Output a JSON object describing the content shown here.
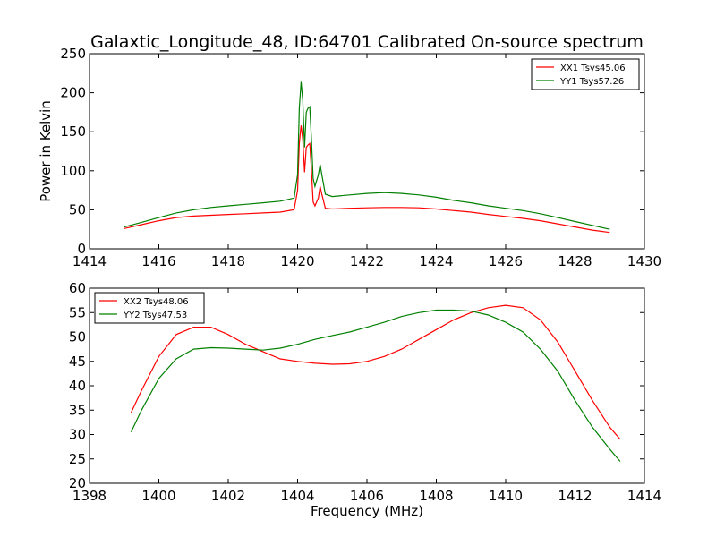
{
  "chart_data": [
    {
      "type": "line",
      "title": "Galaxtic_Longitude_48, ID:64701 Calibrated On-source spectrum",
      "xlabel": "",
      "ylabel": "Power in Kelvin",
      "xlim": [
        1414,
        1430
      ],
      "ylim": [
        0,
        250
      ],
      "xticks": [
        1414,
        1416,
        1418,
        1420,
        1422,
        1424,
        1426,
        1428,
        1430
      ],
      "yticks": [
        0,
        50,
        100,
        150,
        200,
        250
      ],
      "grid": false,
      "legend_position": "top-right",
      "series": [
        {
          "name": "XX1 Tsys45.06",
          "color": "#ff0000",
          "x": [
            1415.0,
            1415.5,
            1416.0,
            1416.5,
            1417.0,
            1417.5,
            1418.0,
            1418.5,
            1419.0,
            1419.5,
            1419.9,
            1420.0,
            1420.05,
            1420.1,
            1420.15,
            1420.2,
            1420.25,
            1420.3,
            1420.35,
            1420.4,
            1420.45,
            1420.5,
            1420.6,
            1420.65,
            1420.7,
            1420.8,
            1421.0,
            1421.5,
            1422.0,
            1422.5,
            1423.0,
            1423.5,
            1424.0,
            1424.5,
            1425.0,
            1425.5,
            1426.0,
            1426.5,
            1427.0,
            1427.5,
            1428.0,
            1428.5,
            1429.0
          ],
          "y": [
            26,
            31,
            36,
            40,
            42,
            43,
            44,
            45,
            46,
            47,
            50,
            75,
            135,
            158,
            140,
            98,
            130,
            133,
            135,
            100,
            60,
            55,
            65,
            80,
            70,
            52,
            51,
            52,
            52.5,
            53,
            53,
            52.5,
            51,
            49,
            47,
            44,
            41.5,
            39,
            36,
            32,
            28,
            24,
            21
          ]
        },
        {
          "name": "YY1 Tsys57.26",
          "color": "#008000",
          "x": [
            1415.0,
            1415.5,
            1416.0,
            1416.5,
            1417.0,
            1417.5,
            1418.0,
            1418.5,
            1419.0,
            1419.5,
            1419.9,
            1420.0,
            1420.05,
            1420.1,
            1420.15,
            1420.2,
            1420.25,
            1420.3,
            1420.35,
            1420.4,
            1420.45,
            1420.5,
            1420.6,
            1420.65,
            1420.7,
            1420.8,
            1421.0,
            1421.5,
            1422.0,
            1422.5,
            1423.0,
            1423.5,
            1424.0,
            1424.5,
            1425.0,
            1425.5,
            1426.0,
            1426.5,
            1427.0,
            1427.5,
            1428.0,
            1428.5,
            1429.0
          ],
          "y": [
            28,
            34,
            40,
            46,
            50,
            53,
            55,
            57,
            59,
            61,
            65,
            95,
            180,
            214,
            190,
            130,
            175,
            180,
            182,
            140,
            90,
            80,
            95,
            108,
            95,
            70,
            67,
            69,
            71,
            72,
            71,
            69,
            66,
            62,
            59,
            55,
            52,
            49,
            45,
            40,
            35,
            30,
            25
          ]
        }
      ]
    },
    {
      "type": "line",
      "title": "",
      "xlabel": "Frequency (MHz)",
      "ylabel": "",
      "xlim": [
        1398,
        1414
      ],
      "ylim": [
        20,
        60
      ],
      "xticks": [
        1398,
        1400,
        1402,
        1404,
        1406,
        1408,
        1410,
        1412,
        1414
      ],
      "yticks": [
        20,
        25,
        30,
        35,
        40,
        45,
        50,
        55,
        60
      ],
      "grid": false,
      "legend_position": "top-left",
      "series": [
        {
          "name": "XX2 Tsys48.06",
          "color": "#ff0000",
          "x": [
            1399.2,
            1399.5,
            1400.0,
            1400.5,
            1401.0,
            1401.5,
            1402.0,
            1402.5,
            1403.0,
            1403.5,
            1404.0,
            1404.5,
            1405.0,
            1405.5,
            1406.0,
            1406.5,
            1407.0,
            1407.5,
            1408.0,
            1408.5,
            1409.0,
            1409.5,
            1410.0,
            1410.5,
            1411.0,
            1411.5,
            1412.0,
            1412.5,
            1413.0,
            1413.3
          ],
          "y": [
            34.5,
            39,
            46,
            50.5,
            52,
            52,
            50.5,
            48.5,
            47,
            45.5,
            45,
            44.6,
            44.4,
            44.5,
            45,
            46,
            47.5,
            49.5,
            51.5,
            53.5,
            55,
            56,
            56.5,
            56,
            53.5,
            49,
            43,
            37,
            31.5,
            29
          ]
        },
        {
          "name": "YY2 Tsys47.53",
          "color": "#008000",
          "x": [
            1399.2,
            1399.5,
            1400.0,
            1400.5,
            1401.0,
            1401.5,
            1402.0,
            1402.5,
            1403.0,
            1403.5,
            1404.0,
            1404.5,
            1405.0,
            1405.5,
            1406.0,
            1406.5,
            1407.0,
            1407.5,
            1408.0,
            1408.5,
            1409.0,
            1409.5,
            1410.0,
            1410.5,
            1411.0,
            1411.5,
            1412.0,
            1412.5,
            1413.0,
            1413.3
          ],
          "y": [
            30.5,
            35,
            41.5,
            45.5,
            47.5,
            47.8,
            47.7,
            47.5,
            47.3,
            47.7,
            48.5,
            49.5,
            50.3,
            51,
            52,
            53,
            54.2,
            55,
            55.5,
            55.5,
            55.3,
            54.5,
            53,
            51,
            47.5,
            43,
            37,
            31.5,
            27,
            24.5
          ]
        }
      ]
    }
  ]
}
